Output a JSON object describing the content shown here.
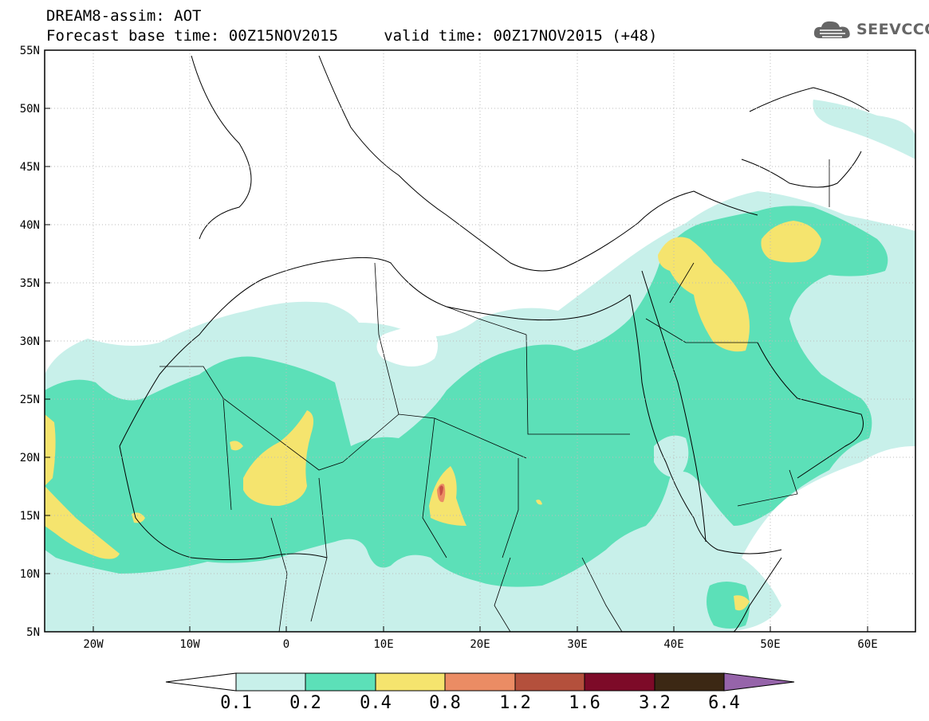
{
  "header": {
    "line1": "DREAM8-assim: AOT",
    "line2": "Forecast base time: 00Z15NOV2015     valid time: 00Z17NOV2015 (+48)"
  },
  "logo": {
    "text": "SEEVCCC",
    "icon": "cloud-icon"
  },
  "axes": {
    "lat_labels": [
      "55N",
      "50N",
      "45N",
      "40N",
      "35N",
      "30N",
      "25N",
      "20N",
      "15N",
      "10N",
      "5N"
    ],
    "lon_labels": [
      "20W",
      "10W",
      "0",
      "10E",
      "20E",
      "30E",
      "40E",
      "50E",
      "60E"
    ]
  },
  "colorbar": {
    "labels": [
      "0.1",
      "0.2",
      "0.4",
      "0.8",
      "1.2",
      "1.6",
      "3.2",
      "6.4"
    ],
    "colors": [
      "#ffffff",
      "#c8f0ea",
      "#5ce0b8",
      "#f5e46e",
      "#eb8c64",
      "#b4503c",
      "#7d0a28",
      "#3c2814",
      "#9664aa"
    ]
  },
  "fill_colors": {
    "light": "#c8f0ea",
    "medium": "#5ce0b8",
    "yellow": "#f5e46e",
    "orange": "#eb8c64",
    "red": "#c85046"
  }
}
